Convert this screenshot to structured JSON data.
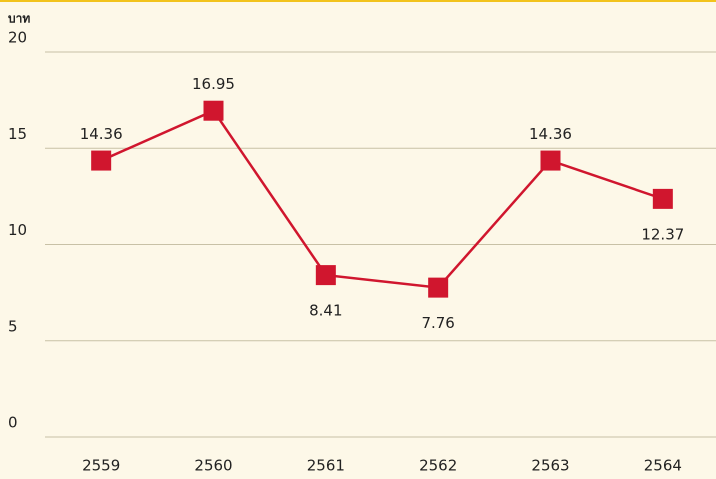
{
  "chart_data": {
    "type": "line",
    "y_axis_label": "บาท",
    "categories": [
      "2559",
      "2560",
      "2561",
      "2562",
      "2563",
      "2564"
    ],
    "series": [
      {
        "name": "บาท",
        "color": "#d0162e",
        "values": [
          14.36,
          16.95,
          8.41,
          7.76,
          14.36,
          12.37
        ]
      }
    ],
    "ylim": [
      0,
      20
    ],
    "yticks": [
      0,
      5,
      10,
      15,
      20
    ],
    "grid": true
  }
}
